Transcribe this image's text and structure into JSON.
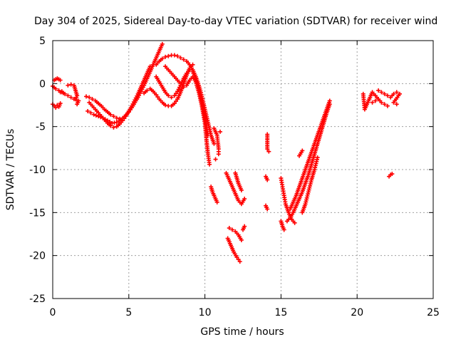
{
  "chart_data": {
    "type": "scatter",
    "title": "Day 304 of 2025, Sidereal Day-to-day VTEC variation (SDTVAR) for receiver wind",
    "xlabel": "GPS time / hours",
    "ylabel": "SDTVAR / TECUs",
    "xlim": [
      0,
      25
    ],
    "ylim": [
      -25,
      5
    ],
    "xticks": [
      "0",
      "5",
      "10",
      "15",
      "20",
      "25"
    ],
    "yticks": [
      "5",
      "0",
      "-5",
      "-10",
      "-15",
      "-20",
      "-25"
    ],
    "grid": true,
    "marker": "plus",
    "color": "#ff0000",
    "series": [
      {
        "points": [
          [
            0.0,
            -2.4
          ],
          [
            0.1,
            -2.6
          ],
          [
            0.2,
            -2.8
          ],
          [
            0.3,
            -2.5
          ],
          [
            0.4,
            -2.7
          ],
          [
            0.5,
            -2.3
          ],
          [
            0.1,
            0.4
          ],
          [
            0.2,
            0.5
          ],
          [
            0.3,
            0.6
          ],
          [
            0.4,
            0.5
          ],
          [
            0.5,
            0.4
          ],
          [
            0.0,
            -0.3
          ],
          [
            0.2,
            -0.6
          ],
          [
            0.4,
            -0.8
          ],
          [
            0.6,
            -1.0
          ],
          [
            0.8,
            -1.2
          ],
          [
            1.0,
            -1.4
          ],
          [
            1.2,
            -1.6
          ],
          [
            1.4,
            -1.8
          ],
          [
            1.6,
            -2.0
          ]
        ]
      },
      {
        "points": [
          [
            0.6,
            -0.9
          ],
          [
            0.7,
            -1.1
          ],
          [
            0.5,
            -1.0
          ],
          [
            1.0,
            -0.2
          ],
          [
            1.2,
            -0.1
          ],
          [
            1.4,
            -0.2
          ],
          [
            1.6,
            -1.4
          ],
          [
            1.5,
            -1.8
          ],
          [
            1.7,
            -2.0
          ],
          [
            1.6,
            -2.4
          ]
        ]
      },
      {
        "points": [
          [
            2.2,
            -1.5
          ],
          [
            2.4,
            -1.6
          ],
          [
            2.6,
            -1.8
          ],
          [
            2.8,
            -2.0
          ],
          [
            3.0,
            -2.3
          ],
          [
            3.2,
            -2.6
          ],
          [
            3.4,
            -3.0
          ],
          [
            3.6,
            -3.3
          ],
          [
            3.8,
            -3.6
          ],
          [
            4.0,
            -3.8
          ],
          [
            4.2,
            -4.0
          ],
          [
            4.4,
            -4.1
          ],
          [
            4.6,
            -4.0
          ],
          [
            4.8,
            -3.7
          ],
          [
            5.0,
            -3.3
          ],
          [
            5.2,
            -2.8
          ],
          [
            5.4,
            -2.2
          ],
          [
            5.6,
            -1.6
          ],
          [
            5.8,
            -0.9
          ],
          [
            6.0,
            -0.2
          ],
          [
            6.2,
            0.6
          ],
          [
            6.4,
            1.4
          ],
          [
            6.6,
            2.2
          ],
          [
            6.8,
            3.0
          ],
          [
            7.0,
            3.8
          ],
          [
            7.2,
            4.6
          ]
        ]
      },
      {
        "points": [
          [
            2.4,
            -2.2
          ],
          [
            2.6,
            -2.6
          ],
          [
            2.8,
            -3.0
          ],
          [
            3.0,
            -3.4
          ],
          [
            3.2,
            -3.8
          ],
          [
            3.4,
            -4.2
          ],
          [
            3.6,
            -4.6
          ],
          [
            3.8,
            -4.9
          ],
          [
            4.0,
            -5.1
          ],
          [
            4.2,
            -5.0
          ],
          [
            4.4,
            -4.7
          ],
          [
            4.6,
            -4.3
          ],
          [
            4.8,
            -3.8
          ],
          [
            5.0,
            -3.2
          ],
          [
            5.2,
            -2.6
          ],
          [
            5.4,
            -1.9
          ],
          [
            5.6,
            -1.2
          ],
          [
            5.8,
            -0.4
          ],
          [
            6.0,
            0.4
          ],
          [
            6.2,
            1.2
          ],
          [
            6.4,
            2.0
          ]
        ]
      },
      {
        "points": [
          [
            2.3,
            -3.2
          ],
          [
            2.5,
            -3.4
          ],
          [
            2.7,
            -3.6
          ],
          [
            3.0,
            -3.8
          ],
          [
            3.3,
            -4.0
          ],
          [
            3.6,
            -4.3
          ],
          [
            3.9,
            -4.6
          ],
          [
            4.2,
            -4.5
          ],
          [
            4.5,
            -4.2
          ]
        ]
      },
      {
        "points": [
          [
            6.0,
            -1.1
          ],
          [
            6.2,
            -0.8
          ],
          [
            6.4,
            -0.6
          ],
          [
            6.6,
            -0.9
          ],
          [
            6.8,
            -1.3
          ],
          [
            7.0,
            -1.8
          ],
          [
            7.2,
            -2.2
          ],
          [
            7.4,
            -2.5
          ],
          [
            7.6,
            -2.6
          ],
          [
            7.8,
            -2.6
          ],
          [
            8.0,
            -2.3
          ],
          [
            8.2,
            -1.8
          ],
          [
            8.4,
            -1.0
          ],
          [
            8.6,
            0.0
          ],
          [
            8.8,
            1.0
          ],
          [
            9.0,
            1.8
          ],
          [
            9.2,
            2.2
          ]
        ]
      },
      {
        "points": [
          [
            6.8,
            2.2
          ],
          [
            7.0,
            2.6
          ],
          [
            7.2,
            2.9
          ],
          [
            7.4,
            3.1
          ],
          [
            7.6,
            3.2
          ],
          [
            7.8,
            3.3
          ],
          [
            8.0,
            3.3
          ],
          [
            8.2,
            3.2
          ],
          [
            8.4,
            3.0
          ],
          [
            8.6,
            2.8
          ],
          [
            8.8,
            2.6
          ],
          [
            9.0,
            2.2
          ],
          [
            9.2,
            1.6
          ],
          [
            9.4,
            0.8
          ],
          [
            9.6,
            -0.2
          ],
          [
            9.8,
            -1.5
          ],
          [
            10.0,
            -3.0
          ],
          [
            10.2,
            -4.5
          ],
          [
            10.4,
            -6.0
          ],
          [
            10.6,
            -7.0
          ]
        ]
      },
      {
        "points": [
          [
            6.8,
            0.8
          ],
          [
            7.0,
            0.2
          ],
          [
            7.2,
            -0.4
          ],
          [
            7.4,
            -1.0
          ],
          [
            7.6,
            -1.4
          ],
          [
            7.8,
            -1.6
          ],
          [
            8.0,
            -1.4
          ],
          [
            8.2,
            -0.9
          ],
          [
            8.4,
            -0.2
          ],
          [
            8.6,
            0.6
          ],
          [
            8.8,
            1.2
          ],
          [
            9.0,
            1.6
          ],
          [
            9.2,
            1.4
          ],
          [
            9.4,
            0.6
          ],
          [
            9.6,
            -0.6
          ],
          [
            9.8,
            -2.2
          ],
          [
            10.0,
            -4.0
          ],
          [
            10.2,
            -6.0
          ]
        ]
      },
      {
        "points": [
          [
            7.4,
            2.0
          ],
          [
            7.6,
            1.6
          ],
          [
            7.8,
            1.2
          ],
          [
            8.0,
            0.8
          ],
          [
            8.2,
            0.4
          ],
          [
            8.4,
            0.0
          ],
          [
            8.6,
            -0.4
          ],
          [
            8.8,
            -0.2
          ],
          [
            9.0,
            0.4
          ],
          [
            9.2,
            0.8
          ],
          [
            9.4,
            0.2
          ],
          [
            9.6,
            -1.0
          ],
          [
            9.8,
            -2.6
          ],
          [
            10.0,
            -4.6
          ],
          [
            10.1,
            -6.5
          ],
          [
            10.2,
            -8.2
          ],
          [
            10.3,
            -9.4
          ]
        ]
      },
      {
        "points": [
          [
            10.4,
            -12.0
          ],
          [
            10.5,
            -12.6
          ],
          [
            10.6,
            -13.0
          ],
          [
            10.8,
            -13.8
          ],
          [
            10.6,
            -5.2
          ],
          [
            10.8,
            -6.0
          ],
          [
            10.9,
            -7.6
          ],
          [
            10.9,
            -8.2
          ],
          [
            11.0,
            -5.6
          ],
          [
            10.7,
            -8.8
          ]
        ]
      },
      {
        "points": [
          [
            11.4,
            -10.4
          ],
          [
            11.6,
            -11.2
          ],
          [
            11.8,
            -12.0
          ],
          [
            12.0,
            -12.8
          ],
          [
            12.2,
            -13.6
          ],
          [
            12.4,
            -14.0
          ],
          [
            12.6,
            -13.4
          ],
          [
            12.0,
            -10.4
          ],
          [
            12.2,
            -11.6
          ],
          [
            12.4,
            -12.4
          ]
        ]
      },
      {
        "points": [
          [
            11.6,
            -16.8
          ],
          [
            11.8,
            -17.0
          ],
          [
            12.0,
            -17.2
          ],
          [
            12.2,
            -17.6
          ],
          [
            12.4,
            -18.2
          ],
          [
            11.5,
            -18.0
          ],
          [
            11.7,
            -18.8
          ],
          [
            11.9,
            -19.6
          ],
          [
            12.1,
            -20.2
          ],
          [
            12.3,
            -20.7
          ],
          [
            12.5,
            -17.0
          ],
          [
            12.6,
            -16.6
          ]
        ]
      },
      {
        "points": [
          [
            14.1,
            -5.9
          ],
          [
            14.1,
            -7.6
          ],
          [
            14.2,
            -7.9
          ],
          [
            14.0,
            -10.8
          ],
          [
            14.1,
            -11.2
          ],
          [
            14.0,
            -14.2
          ],
          [
            14.1,
            -14.6
          ]
        ]
      },
      {
        "points": [
          [
            15.0,
            -11.0
          ],
          [
            15.1,
            -12.0
          ],
          [
            15.2,
            -13.0
          ],
          [
            15.3,
            -14.0
          ],
          [
            15.5,
            -15.0
          ],
          [
            15.7,
            -15.8
          ],
          [
            15.9,
            -16.2
          ],
          [
            15.0,
            -16.0
          ],
          [
            15.1,
            -16.6
          ],
          [
            15.2,
            -17.0
          ]
        ]
      },
      {
        "points": [
          [
            15.6,
            -14.6
          ],
          [
            15.8,
            -13.8
          ],
          [
            16.0,
            -13.0
          ],
          [
            16.2,
            -12.0
          ],
          [
            16.4,
            -11.0
          ],
          [
            16.6,
            -10.0
          ],
          [
            16.8,
            -9.0
          ],
          [
            17.0,
            -8.0
          ],
          [
            17.2,
            -7.0
          ],
          [
            17.4,
            -6.0
          ],
          [
            17.6,
            -5.0
          ],
          [
            17.8,
            -4.0
          ],
          [
            18.0,
            -3.0
          ],
          [
            18.2,
            -2.0
          ]
        ]
      },
      {
        "points": [
          [
            15.4,
            -16.0
          ],
          [
            15.6,
            -15.6
          ],
          [
            15.8,
            -15.0
          ],
          [
            16.0,
            -14.2
          ],
          [
            16.2,
            -13.4
          ],
          [
            16.4,
            -12.6
          ],
          [
            16.6,
            -11.6
          ],
          [
            16.8,
            -10.6
          ],
          [
            17.0,
            -9.4
          ],
          [
            17.2,
            -8.2
          ],
          [
            17.4,
            -7.0
          ],
          [
            17.6,
            -5.8
          ],
          [
            17.8,
            -4.6
          ],
          [
            18.0,
            -3.4
          ],
          [
            18.2,
            -2.4
          ]
        ]
      },
      {
        "points": [
          [
            16.4,
            -15.0
          ],
          [
            16.6,
            -14.0
          ],
          [
            16.8,
            -12.6
          ],
          [
            17.0,
            -11.2
          ],
          [
            17.2,
            -10.0
          ],
          [
            17.4,
            -8.6
          ],
          [
            16.2,
            -8.4
          ],
          [
            16.4,
            -7.8
          ]
        ]
      },
      {
        "points": [
          [
            20.4,
            -1.2
          ],
          [
            20.5,
            -3.0
          ],
          [
            20.6,
            -2.6
          ],
          [
            21.0,
            -1.0
          ],
          [
            21.2,
            -1.4
          ],
          [
            21.4,
            -1.8
          ],
          [
            21.6,
            -2.2
          ],
          [
            21.8,
            -2.4
          ],
          [
            22.0,
            -2.6
          ],
          [
            21.4,
            -0.8
          ],
          [
            21.6,
            -1.0
          ],
          [
            21.8,
            -1.2
          ],
          [
            22.0,
            -1.4
          ],
          [
            22.2,
            -1.6
          ],
          [
            22.4,
            -1.2
          ],
          [
            22.6,
            -1.0
          ],
          [
            22.8,
            -1.2
          ],
          [
            22.4,
            -2.2
          ],
          [
            22.6,
            -2.4
          ],
          [
            21.2,
            -2.0
          ],
          [
            21.0,
            -2.2
          ],
          [
            22.1,
            -10.8
          ],
          [
            22.2,
            -10.6
          ],
          [
            22.3,
            -10.5
          ]
        ]
      }
    ]
  }
}
